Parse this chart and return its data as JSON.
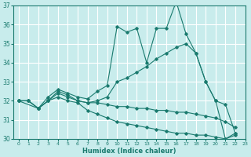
{
  "xlabel": "Humidex (Indice chaleur)",
  "xlim": [
    -0.5,
    23
  ],
  "ylim": [
    30,
    37
  ],
  "yticks": [
    30,
    31,
    32,
    33,
    34,
    35,
    36,
    37
  ],
  "xticks": [
    0,
    1,
    2,
    3,
    4,
    5,
    6,
    7,
    8,
    9,
    10,
    11,
    12,
    13,
    14,
    15,
    16,
    17,
    18,
    19,
    20,
    21,
    22,
    23
  ],
  "bg_color": "#c8ecec",
  "grid_color": "#ffffff",
  "line_color": "#1a7a6e",
  "line1_x": [
    0,
    1,
    2,
    3,
    4,
    5,
    6,
    7,
    8,
    9,
    10,
    11,
    12,
    13,
    14,
    15,
    16,
    17,
    18,
    19,
    20,
    21,
    22
  ],
  "line1_y": [
    32.0,
    32.0,
    31.6,
    32.2,
    32.6,
    32.4,
    32.2,
    32.1,
    32.5,
    32.8,
    35.9,
    35.6,
    35.8,
    34.0,
    35.8,
    35.8,
    37.2,
    35.5,
    34.5,
    33.0,
    32.0,
    30.0,
    30.3
  ],
  "line2_x": [
    0,
    1,
    2,
    3,
    4,
    5,
    6,
    7,
    8,
    9,
    10,
    11,
    12,
    13,
    14,
    15,
    16,
    17,
    18,
    19,
    20,
    21,
    22
  ],
  "line2_y": [
    32.0,
    32.0,
    31.6,
    32.0,
    32.5,
    32.3,
    32.0,
    31.9,
    32.0,
    32.2,
    33.0,
    33.2,
    33.5,
    33.8,
    34.2,
    34.5,
    34.8,
    35.0,
    34.5,
    33.0,
    32.0,
    31.8,
    30.3
  ],
  "line3_x": [
    0,
    2,
    3,
    4,
    5,
    6,
    7,
    8,
    9,
    10,
    11,
    12,
    13,
    14,
    15,
    16,
    17,
    18,
    19,
    20,
    21,
    22
  ],
  "line3_y": [
    32.0,
    31.6,
    32.0,
    32.4,
    32.2,
    32.0,
    31.9,
    31.9,
    31.8,
    31.7,
    31.7,
    31.6,
    31.6,
    31.5,
    31.5,
    31.4,
    31.4,
    31.3,
    31.2,
    31.1,
    30.9,
    30.6
  ],
  "line4_x": [
    0,
    1,
    2,
    3,
    4,
    5,
    6,
    7,
    8,
    9,
    10,
    11,
    12,
    13,
    14,
    15,
    16,
    17,
    18,
    19,
    20,
    21,
    22
  ],
  "line4_y": [
    32.0,
    32.0,
    31.6,
    32.0,
    32.2,
    32.0,
    31.9,
    31.5,
    31.3,
    31.1,
    30.9,
    30.8,
    30.7,
    30.6,
    30.5,
    30.4,
    30.3,
    30.3,
    30.2,
    30.2,
    30.1,
    30.0,
    30.2
  ]
}
